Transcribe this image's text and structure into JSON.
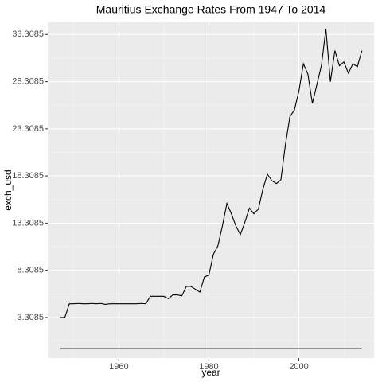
{
  "chart_data": {
    "type": "line",
    "title": "Mauritius Exchange Rates From 1947 To 2014",
    "x_label": "year",
    "y_label": "exch_usd",
    "x": [
      1947,
      1948,
      1949,
      1950,
      1951,
      1952,
      1953,
      1954,
      1955,
      1956,
      1957,
      1958,
      1959,
      1960,
      1961,
      1962,
      1963,
      1964,
      1965,
      1966,
      1967,
      1968,
      1969,
      1970,
      1971,
      1972,
      1973,
      1974,
      1975,
      1976,
      1977,
      1978,
      1979,
      1980,
      1981,
      1982,
      1983,
      1984,
      1985,
      1986,
      1987,
      1988,
      1989,
      1990,
      1991,
      1992,
      1993,
      1994,
      1995,
      1996,
      1997,
      1998,
      1999,
      2000,
      2001,
      2002,
      2003,
      2004,
      2005,
      2006,
      2007,
      2008,
      2009,
      2010,
      2011,
      2012,
      2013,
      2014
    ],
    "series": [
      {
        "color": "#000000",
        "values": [
          3.31,
          3.31,
          4.76,
          4.76,
          4.8,
          4.76,
          4.76,
          4.8,
          4.76,
          4.8,
          4.7,
          4.76,
          4.76,
          4.76,
          4.76,
          4.76,
          4.76,
          4.76,
          4.8,
          4.76,
          5.55,
          5.55,
          5.55,
          5.55,
          5.3,
          5.7,
          5.7,
          5.6,
          6.6,
          6.6,
          6.3,
          6.0,
          7.6,
          7.8,
          10.0,
          10.9,
          13.0,
          15.4,
          14.3,
          13.0,
          12.1,
          13.4,
          14.9,
          14.3,
          14.8,
          16.9,
          18.5,
          17.8,
          17.5,
          17.9,
          21.6,
          24.6,
          25.3,
          27.3,
          30.2,
          29.1,
          26.0,
          28.0,
          30.0,
          33.9,
          28.3,
          31.6,
          30.0,
          30.4,
          29.2,
          30.2,
          29.9,
          31.6
        ]
      },
      {
        "color": "#000000",
        "values": [
          0,
          0,
          0,
          0,
          0,
          0,
          0,
          0,
          0,
          0,
          0,
          0,
          0,
          0,
          0,
          0,
          0,
          0,
          0,
          0,
          0,
          0,
          0,
          0,
          0,
          0,
          0,
          0,
          0,
          0,
          0,
          0,
          0,
          0,
          0,
          0,
          0,
          0,
          0,
          0,
          0,
          0,
          0,
          0,
          0,
          0,
          0,
          0,
          0,
          0,
          0,
          0,
          0,
          0,
          0,
          0,
          0,
          0,
          0,
          0,
          0,
          0,
          0,
          0,
          0,
          0,
          0,
          0
        ]
      }
    ],
    "xlim": [
      1944.2,
      2016.7
    ],
    "ylim": [
      -1.0,
      34.6
    ],
    "xticks": [
      1960,
      1980,
      2000
    ],
    "yticks": [
      3.3085,
      8.3085,
      13.3085,
      18.3085,
      23.3085,
      28.3085,
      33.3085
    ],
    "grid": true
  }
}
